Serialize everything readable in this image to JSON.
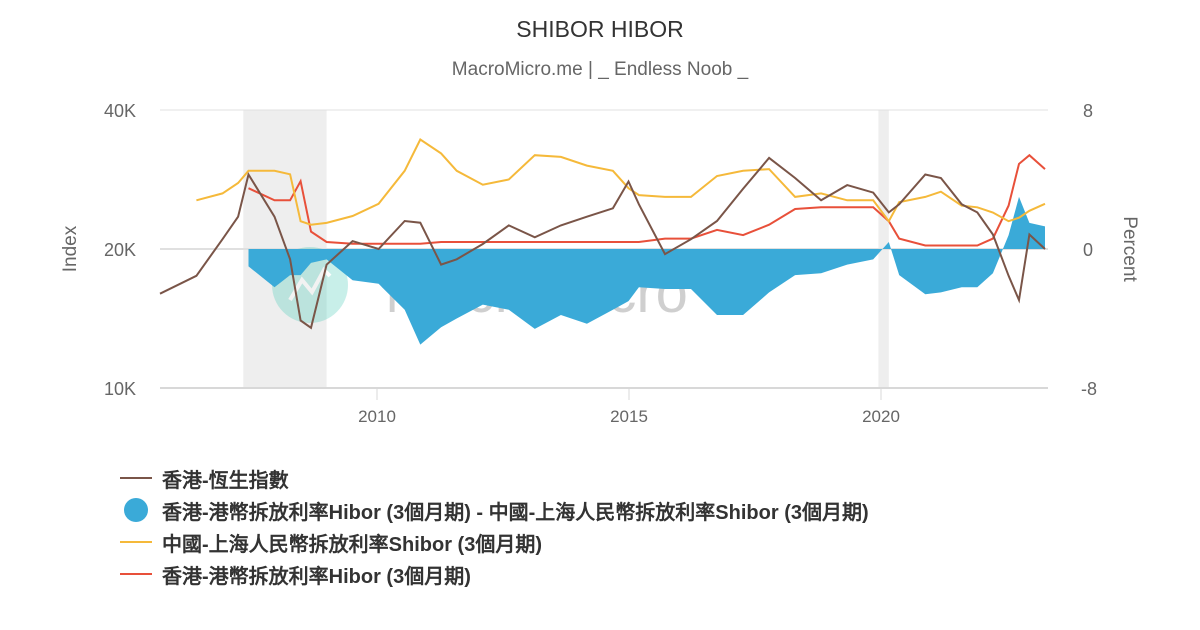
{
  "header": {
    "title": "SHIBOR HIBOR",
    "subtitle": "MacroMicro.me | _ Endless Noob _"
  },
  "watermark": {
    "text": "MacroMicro"
  },
  "axes": {
    "left": {
      "title": "Index",
      "ticks": [
        "40K",
        "20K",
        "10K"
      ],
      "scale": "log",
      "range": [
        10000,
        40000
      ]
    },
    "right": {
      "title": "Percent",
      "ticks": [
        "8",
        "0",
        "-8"
      ],
      "range": [
        -8,
        8
      ]
    },
    "x": {
      "ticks": [
        "2010",
        "2015",
        "2020"
      ]
    }
  },
  "colors": {
    "hsi": "#7a5548",
    "spread": "#3aaad8",
    "shibor": "#f5b93a",
    "hibor": "#e8503a",
    "recession": "#eeeeee",
    "grid": "#e0e0e0"
  },
  "legend": {
    "items": [
      {
        "label": "香港-恆生指數",
        "color": "#7a5548",
        "marker": "line"
      },
      {
        "label": "香港-港幣拆放利率Hibor (3個月期) - 中國-上海人民幣拆放利率Shibor (3個月期)",
        "color": "#3aaad8",
        "marker": "dot"
      },
      {
        "label": "中國-上海人民幣拆放利率Shibor (3個月期)",
        "color": "#f5b93a",
        "marker": "line"
      },
      {
        "label": "香港-港幣拆放利率Hibor (3個月期)",
        "color": "#e8503a",
        "marker": "line"
      }
    ]
  },
  "chart_data": {
    "type": "line",
    "title": "SHIBOR HIBOR",
    "subtitle": "MacroMicro.me | _ Endless Noob _",
    "xlabel": "",
    "ylabel_left": "Index",
    "ylabel_right": "Percent",
    "ylim_left": [
      10000,
      40000
    ],
    "ylim_right": [
      -8,
      8
    ],
    "xlim": [
      2006.3,
      2023.3
    ],
    "grid": "horizontal",
    "legend_position": "bottom-left",
    "shaded_periods": [
      [
        2007.9,
        2009.5
      ],
      [
        2020.1,
        2020.3
      ]
    ],
    "x": [
      2006.3,
      2007.0,
      2007.5,
      2007.8,
      2008.0,
      2008.5,
      2008.8,
      2009.0,
      2009.2,
      2009.5,
      2010.0,
      2010.5,
      2011.0,
      2011.3,
      2011.7,
      2012.0,
      2012.5,
      2013.0,
      2013.5,
      2014.0,
      2014.5,
      2015.0,
      2015.3,
      2015.5,
      2016.0,
      2016.5,
      2017.0,
      2017.5,
      2018.0,
      2018.5,
      2019.0,
      2019.5,
      2020.0,
      2020.3,
      2020.5,
      2021.0,
      2021.3,
      2021.7,
      2022.0,
      2022.3,
      2022.6,
      2022.8,
      2023.0,
      2023.3
    ],
    "series": [
      {
        "name": "香港-恆生指數",
        "axis": "left",
        "type": "line",
        "values": [
          16000,
          17500,
          21000,
          23500,
          29000,
          23500,
          19000,
          14000,
          13500,
          18500,
          20800,
          20000,
          23000,
          22800,
          18500,
          19000,
          20500,
          22500,
          21200,
          22500,
          23500,
          24500,
          28000,
          25000,
          19500,
          21000,
          23000,
          27000,
          31500,
          28500,
          25500,
          27500,
          26500,
          24000,
          25000,
          29000,
          28500,
          25000,
          24000,
          21500,
          17500,
          15500,
          21500,
          20000
        ]
      },
      {
        "name": "香港-港幣拆放利率Hibor (3個月期) - 中國-上海人民幣拆放利率Shibor (3個月期)",
        "axis": "right",
        "type": "area",
        "values": [
          null,
          null,
          null,
          null,
          -1.0,
          -2.2,
          -1.5,
          -1.5,
          -0.8,
          -0.6,
          -1.8,
          -2.0,
          -3.5,
          -5.5,
          -4.5,
          -4.0,
          -3.2,
          -3.5,
          -4.6,
          -3.8,
          -4.3,
          -3.5,
          -3.0,
          -2.2,
          -2.3,
          -2.3,
          -3.8,
          -3.8,
          -2.5,
          -1.5,
          -1.4,
          -0.9,
          -0.6,
          0.4,
          -1.5,
          -2.6,
          -2.5,
          -2.2,
          -2.2,
          -1.4,
          0.8,
          3.0,
          1.5,
          1.3
        ]
      },
      {
        "name": "中國-上海人民幣拆放利率Shibor (3個月期)",
        "axis": "right",
        "type": "line",
        "values": [
          null,
          2.8,
          3.2,
          3.8,
          4.5,
          4.5,
          4.3,
          1.6,
          1.4,
          1.5,
          1.9,
          2.6,
          4.5,
          6.3,
          5.5,
          4.5,
          3.7,
          4.0,
          5.4,
          5.3,
          4.8,
          4.5,
          3.5,
          3.1,
          3.0,
          3.0,
          4.2,
          4.5,
          4.6,
          3.0,
          3.2,
          2.8,
          2.8,
          1.6,
          2.7,
          3.0,
          3.3,
          2.5,
          2.4,
          2.1,
          1.6,
          1.8,
          2.2,
          2.6
        ]
      },
      {
        "name": "香港-港幣拆放利率Hibor (3個月期)",
        "axis": "right",
        "type": "line",
        "values": [
          null,
          null,
          null,
          null,
          3.5,
          2.8,
          2.8,
          3.9,
          1.0,
          0.4,
          0.3,
          0.3,
          0.3,
          0.3,
          0.4,
          0.4,
          0.4,
          0.4,
          0.4,
          0.4,
          0.4,
          0.4,
          0.4,
          0.4,
          0.6,
          0.6,
          1.1,
          0.8,
          1.4,
          2.3,
          2.4,
          2.4,
          2.4,
          1.6,
          0.6,
          0.2,
          0.2,
          0.2,
          0.2,
          0.6,
          2.5,
          4.9,
          5.4,
          4.6
        ]
      }
    ]
  }
}
